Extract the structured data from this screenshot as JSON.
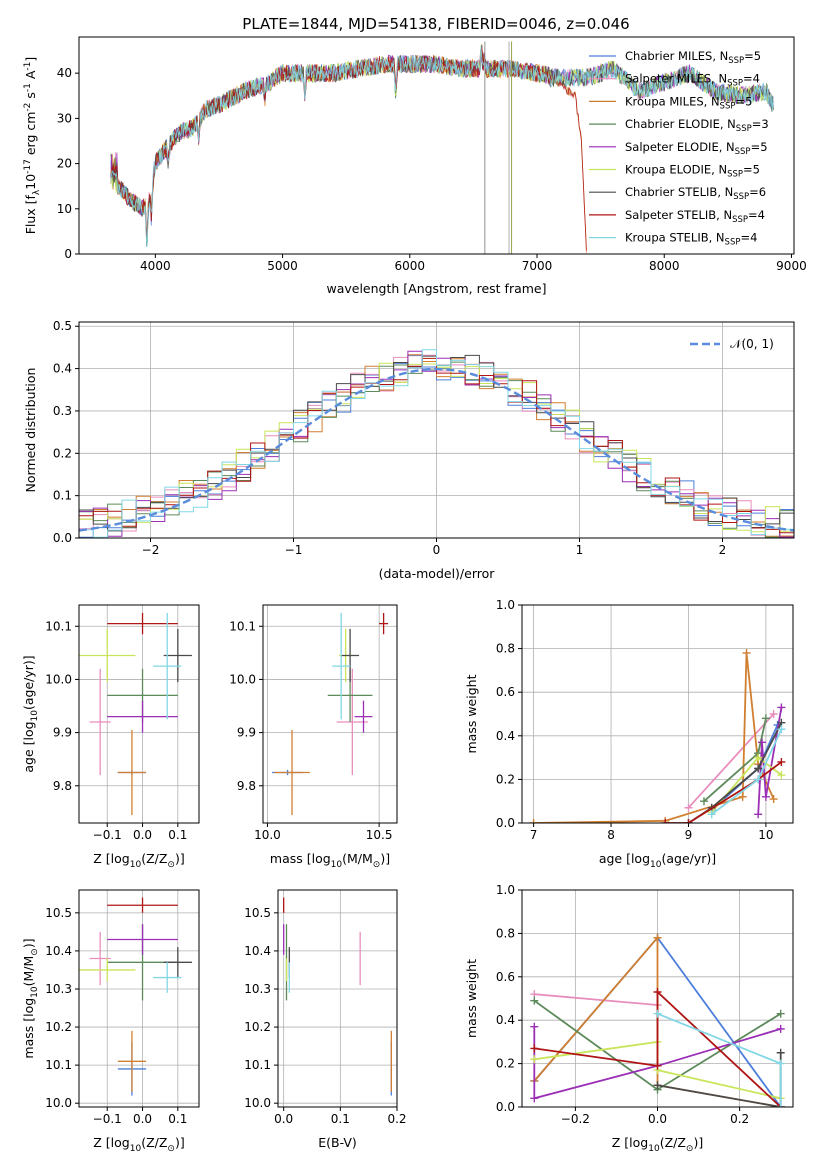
{
  "figure_title": "PLATE=1844, MJD=54138, FIBERID=0046, z=0.046",
  "colors": {
    "Chabrier MILES": "#4d7fdb",
    "Salpeter MILES": "#e88ebd",
    "Kroupa MILES": "#d07f30",
    "Chabrier ELODIE": "#5d8a5b",
    "Salpeter ELODIE": "#9b2fb5",
    "Kroupa ELODIE": "#c9e55a",
    "Chabrier STELIB": "#4a4a4a",
    "Salpeter STELIB": "#b01515",
    "Kroupa STELIB": "#82d7e6",
    "gauss": "#5a8cdc"
  },
  "chart_data": [
    {
      "id": "spectrum",
      "type": "line",
      "xlabel": "wavelength [Angstrom, rest frame]",
      "ylabel": "Flux [f$_\\lambda$10$^{-17}$ erg cm$^{-2}$ s$^{-1}$ A$^{-1}$]",
      "xlim": [
        3400,
        9020
      ],
      "ylim": [
        0,
        48
      ],
      "xticks": [
        4000,
        5000,
        6000,
        7000,
        8000,
        9000
      ],
      "yticks": [
        0,
        10,
        20,
        30,
        40
      ],
      "continuum_knots": {
        "x": [
          3650,
          3800,
          3900,
          3950,
          4000,
          4100,
          4200,
          4300,
          4400,
          4500,
          4700,
          4900,
          5000,
          5200,
          5400,
          5600,
          5800,
          6000,
          6200,
          6400,
          6600,
          6800,
          7000,
          7200,
          7400
        ],
        "y": [
          17,
          12,
          10,
          12,
          20,
          24,
          27,
          28,
          32,
          33,
          36,
          38,
          40,
          40,
          40,
          41,
          42,
          42,
          42,
          41,
          41,
          41,
          40,
          39,
          38
        ]
      },
      "red_branch_upper": {
        "x": [
          7400,
          7600,
          7800,
          8000,
          8200,
          8400,
          8600,
          8800,
          8850
        ],
        "y": [
          39,
          41,
          36,
          38,
          40,
          36,
          35,
          36,
          33
        ]
      },
      "red_branch_lower": {
        "x": [
          7100,
          7200,
          7300,
          7350,
          7390
        ],
        "y": [
          40,
          37,
          35,
          25,
          0
        ]
      },
      "legend": [
        {
          "label": "Chabrier MILES, N",
          "sub": "SSP",
          "val": "=5"
        },
        {
          "label": "Salpeter MILES, N",
          "sub": "SSP",
          "val": "=4"
        },
        {
          "label": "Kroupa MILES, N",
          "sub": "SSP",
          "val": "=5"
        },
        {
          "label": "Chabrier ELODIE, N",
          "sub": "SSP",
          "val": "=3"
        },
        {
          "label": "Salpeter ELODIE, N",
          "sub": "SSP",
          "val": "=5"
        },
        {
          "label": "Kroupa ELODIE, N",
          "sub": "SSP",
          "val": "=5"
        },
        {
          "label": "Chabrier STELIB, N",
          "sub": "SSP",
          "val": "=6"
        },
        {
          "label": "Salpeter STELIB, N",
          "sub": "SSP",
          "val": "=4"
        },
        {
          "label": "Kroupa STELIB, N",
          "sub": "SSP",
          "val": "=4"
        }
      ]
    },
    {
      "id": "residuals",
      "type": "line",
      "xlabel": "(data-model)/error",
      "ylabel": "Normed distribution",
      "xlim": [
        -2.5,
        2.5
      ],
      "ylim": [
        0,
        0.51
      ],
      "xticks": [
        -2,
        -1,
        0,
        1,
        2
      ],
      "yticks": [
        0.0,
        0.1,
        0.2,
        0.3,
        0.4,
        0.5
      ],
      "bin_width": 0.1,
      "legend_label": "𝒩(0, 1)"
    },
    {
      "id": "age_vs_Z",
      "type": "scatter",
      "xlabel": "Z [log$_{10}$($Z/Z_\\odot$)]",
      "ylabel": "age  [log$_{10}$($age/yr$)]",
      "xlim": [
        -0.18,
        0.16
      ],
      "ylim": [
        9.73,
        10.14
      ],
      "xticks": [
        -0.1,
        0.0,
        0.1
      ],
      "yticks": [
        9.8,
        9.9,
        10.0,
        10.1
      ]
    },
    {
      "id": "age_vs_mass",
      "type": "scatter",
      "xlabel": "mass [log$_{10}$($M/M_\\odot$)]",
      "xlim": [
        9.98,
        10.58
      ],
      "ylim": [
        9.73,
        10.14
      ],
      "xticks": [
        10.0,
        10.5
      ],
      "yticks": [
        9.8,
        9.9,
        10.0,
        10.1
      ]
    },
    {
      "id": "weight_vs_age",
      "type": "line",
      "xlabel": "age  [log$_{10}$($age/yr$)]",
      "ylabel": "mass weight",
      "xlim": [
        6.85,
        10.35
      ],
      "ylim": [
        0,
        1
      ],
      "xticks": [
        7,
        8,
        9,
        10
      ],
      "yticks": [
        0.0,
        0.2,
        0.4,
        0.6,
        0.8,
        1.0
      ],
      "series": [
        {
          "model": "Chabrier MILES",
          "x": [
            9.3,
            9.9,
            10.15
          ],
          "y": [
            0.06,
            0.25,
            0.45
          ]
        },
        {
          "model": "Salpeter MILES",
          "x": [
            9.0,
            10.1
          ],
          "y": [
            0.07,
            0.5
          ]
        },
        {
          "model": "Kroupa MILES",
          "x": [
            7.0,
            8.7,
            9.7,
            9.75,
            9.9,
            10.1
          ],
          "y": [
            0.0,
            0.01,
            0.12,
            0.78,
            0.27,
            0.11
          ]
        },
        {
          "model": "Chabrier ELODIE",
          "x": [
            9.2,
            9.9,
            10.0
          ],
          "y": [
            0.1,
            0.32,
            0.48
          ]
        },
        {
          "model": "Salpeter ELODIE",
          "x": [
            9.9,
            9.95,
            10.0,
            10.2
          ],
          "y": [
            0.04,
            0.37,
            0.12,
            0.53
          ]
        },
        {
          "model": "Kroupa ELODIE",
          "x": [
            9.3,
            9.9,
            10.2
          ],
          "y": [
            0.05,
            0.3,
            0.22
          ]
        },
        {
          "model": "Chabrier STELIB",
          "x": [
            9.0,
            9.3,
            9.9,
            10.2
          ],
          "y": [
            0.0,
            0.07,
            0.25,
            0.46
          ]
        },
        {
          "model": "Salpeter STELIB",
          "x": [
            8.7,
            9.0,
            9.9,
            10.2
          ],
          "y": [
            0.0,
            0.0,
            0.2,
            0.28
          ]
        },
        {
          "model": "Kroupa STELIB",
          "x": [
            9.3,
            9.9,
            10.2
          ],
          "y": [
            0.04,
            0.2,
            0.43
          ]
        }
      ]
    },
    {
      "id": "mass_vs_Z",
      "type": "scatter",
      "xlabel": "Z [log$_{10}$($Z/Z_\\odot$)]",
      "ylabel": "mass [log$_{10}$($M/M_\\odot$)]",
      "xlim": [
        -0.18,
        0.16
      ],
      "ylim": [
        9.99,
        10.56
      ],
      "xticks": [
        -0.1,
        0.0,
        0.1
      ],
      "yticks": [
        10.0,
        10.1,
        10.2,
        10.3,
        10.4,
        10.5
      ]
    },
    {
      "id": "mass_vs_EBV",
      "type": "scatter",
      "xlabel": "E(B-V)",
      "xlim": [
        -0.01,
        0.2
      ],
      "ylim": [
        9.99,
        10.56
      ],
      "xticks": [
        0.0,
        0.1,
        0.2
      ],
      "yticks": [
        10.0,
        10.1,
        10.2,
        10.3,
        10.4,
        10.5
      ]
    },
    {
      "id": "weight_vs_Z",
      "type": "line",
      "xlabel": "Z [log$_{10}$($Z/Z_\\odot$)]",
      "ylabel": "mass weight",
      "xlim": [
        -0.33,
        0.33
      ],
      "ylim": [
        0,
        1
      ],
      "xticks": [
        -0.2,
        0.0,
        0.2
      ],
      "yticks": [
        0.0,
        0.2,
        0.4,
        0.6,
        0.8,
        1.0
      ],
      "series": [
        {
          "model": "Chabrier MILES",
          "x": [
            -0.3,
            0.0,
            0.3
          ],
          "y": [
            0.12,
            0.78,
            0.0
          ]
        },
        {
          "model": "Salpeter MILES",
          "x": [
            -0.3,
            0.0
          ],
          "y": [
            0.52,
            0.47
          ]
        },
        {
          "model": "Kroupa MILES",
          "x": [
            -0.3,
            0.0,
            0.0,
            0.3
          ],
          "y": [
            0.12,
            0.78,
            0.1,
            0.0
          ]
        },
        {
          "model": "Chabrier ELODIE",
          "x": [
            -0.3,
            0.0,
            0.3
          ],
          "y": [
            0.49,
            0.08,
            0.43
          ]
        },
        {
          "model": "Salpeter ELODIE",
          "x": [
            -0.3,
            -0.3,
            0.0,
            0.3
          ],
          "y": [
            0.37,
            0.04,
            0.19,
            0.36
          ]
        },
        {
          "model": "Kroupa ELODIE",
          "x": [
            -0.3,
            0.0,
            0.0,
            0.3
          ],
          "y": [
            0.22,
            0.3,
            0.17,
            0.04
          ]
        },
        {
          "model": "Chabrier STELIB",
          "x": [
            0.0,
            0.3,
            0.3
          ],
          "y": [
            0.1,
            0.0,
            0.25
          ]
        },
        {
          "model": "Salpeter STELIB",
          "x": [
            -0.3,
            0.0,
            0.0,
            0.3
          ],
          "y": [
            0.27,
            0.19,
            0.53,
            0.0
          ]
        },
        {
          "model": "Kroupa STELIB",
          "x": [
            0.0,
            0.3,
            0.3
          ],
          "y": [
            0.43,
            0.2,
            0.0
          ]
        }
      ]
    },
    {
      "id": "error_bars",
      "type": "scatter",
      "points": [
        {
          "model": "Chabrier MILES",
          "Z": -0.03,
          "Z_err": 0.04,
          "age": 9.825,
          "age_err": 0.005,
          "mass": 10.09,
          "mass_err": 0.07,
          "ebv": 0.19
        },
        {
          "model": "Salpeter MILES",
          "Z": -0.12,
          "Z_err": 0.03,
          "age": 9.92,
          "age_err": 0.1,
          "mass": 10.38,
          "mass_err": 0.07,
          "ebv": 0.135
        },
        {
          "model": "Kroupa MILES",
          "Z": -0.03,
          "Z_err": 0.04,
          "age": 9.825,
          "age_err": 0.08,
          "mass": 10.11,
          "mass_err": 0.08,
          "ebv": 0.19
        },
        {
          "model": "Chabrier ELODIE",
          "Z": 0.0,
          "Z_err": 0.1,
          "age": 9.97,
          "age_err": 0.05,
          "mass": 10.37,
          "mass_err": 0.1,
          "ebv": 0.005
        },
        {
          "model": "Salpeter ELODIE",
          "Z": 0.0,
          "Z_err": 0.1,
          "age": 9.93,
          "age_err": 0.03,
          "mass": 10.43,
          "mass_err": 0.04,
          "ebv": 0.0
        },
        {
          "model": "Kroupa ELODIE",
          "Z": -0.1,
          "Z_err": 0.08,
          "age": 10.045,
          "age_err": 0.05,
          "mass": 10.35,
          "mass_err": 0.03,
          "ebv": 0.005
        },
        {
          "model": "Chabrier STELIB",
          "Z": 0.1,
          "Z_err": 0.04,
          "age": 10.045,
          "age_err": 0.05,
          "mass": 10.37,
          "mass_err": 0.04,
          "ebv": 0.01
        },
        {
          "model": "Salpeter STELIB",
          "Z": 0.0,
          "Z_err": 0.1,
          "age": 10.105,
          "age_err": 0.02,
          "mass": 10.52,
          "mass_err": 0.02,
          "ebv": 0.0
        },
        {
          "model": "Kroupa STELIB",
          "Z": 0.07,
          "Z_err": 0.04,
          "age": 10.025,
          "age_err": 0.1,
          "mass": 10.33,
          "mass_err": 0.04,
          "ebv": 0.01
        }
      ]
    }
  ]
}
